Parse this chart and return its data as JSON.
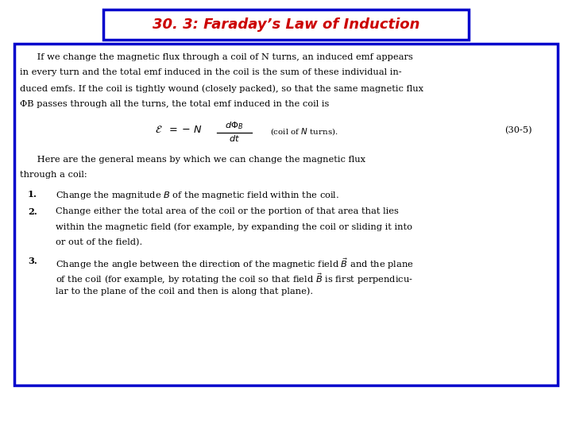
{
  "title": "30. 3: Faraday’s Law of Induction",
  "title_color": "#CC0000",
  "title_bg_color": "#FFFFFF",
  "title_border_color": "#0000CC",
  "outer_border_color": "#0000CC",
  "bg_color": "#FFFFFF",
  "body_text_color": "#000000",
  "para1_lines": [
    "      If we change the magnetic flux through a coil of N turns, an induced emf appears",
    "in every turn and the total emf induced in the coil is the sum of these individual in-",
    "duced emfs. If the coil is tightly wound (closely packed), so that the same magnetic flux",
    "ΦB passes through all the turns, the total emf induced in the coil is"
  ],
  "para2_lines": [
    "      Here are the general means by which we can change the magnetic flux",
    "through a coil:"
  ],
  "item1": "Change the magnitude B of the magnetic field within the coil.",
  "item2_lines": [
    "Change either the total area of the coil or the portion of that area that lies",
    "within the magnetic field (for example, by expanding the coil or sliding it into",
    "or out of the field)."
  ],
  "item3_lines": [
    "Change the angle between the direction of the magnetic field B and the plane",
    "of the coil (for example, by rotating the coil so that field B is first perpendicu-",
    "lar to the plane of the coil and then is along that plane)."
  ],
  "figsize": [
    7.2,
    5.4
  ],
  "dpi": 100
}
